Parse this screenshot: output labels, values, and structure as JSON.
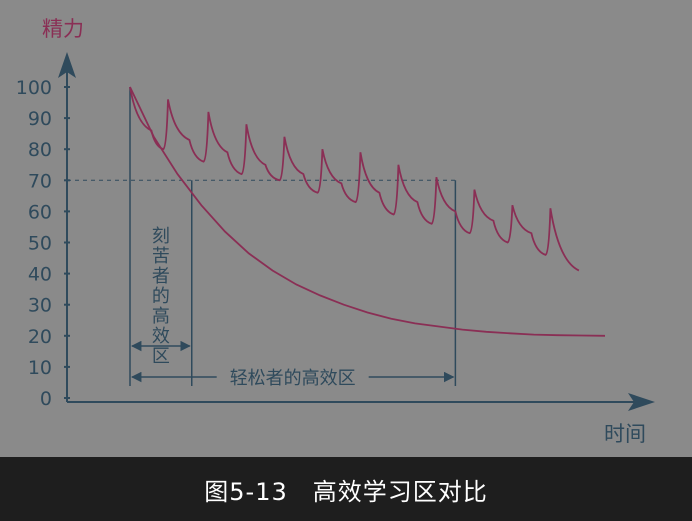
{
  "caption": "图5-13　高效学习区对比",
  "colors": {
    "background": "#8a8a8a",
    "axis": "#2f4a5c",
    "curve": "#8a2f55",
    "guide": "#2f4a5c",
    "caption_bg": "#1e1e1e",
    "caption_text": "#ffffff"
  },
  "chart_data": {
    "type": "line",
    "title": "",
    "ylabel": "精力",
    "xlabel": "时间",
    "ylim": [
      0,
      100
    ],
    "xlim": [
      0,
      10
    ],
    "yticks": [
      100,
      90,
      80,
      70,
      60,
      50,
      40,
      30,
      20,
      10,
      0
    ],
    "threshold": 70,
    "series": [
      {
        "name": "",
        "role": "continuous-decay",
        "x": [
          0,
          0.5,
          1,
          1.5,
          2,
          2.5,
          3,
          3.5,
          4,
          4.5,
          5,
          5.5,
          6,
          6.5,
          7,
          7.5,
          8,
          8.5,
          9,
          9.5,
          10
        ],
        "y": [
          100,
          84,
          72,
          62,
          53.5,
          46.5,
          41,
          36.5,
          33,
          30,
          27.5,
          25.5,
          24,
          23,
          22,
          21.3,
          20.8,
          20.4,
          20.2,
          20.1,
          20
        ]
      },
      {
        "name": "",
        "role": "with-breaks",
        "x": [
          0,
          0.45,
          0.7,
          0.8,
          1.25,
          1.55,
          1.65,
          2.05,
          2.35,
          2.45,
          2.85,
          3.15,
          3.25,
          3.65,
          3.95,
          4.05,
          4.45,
          4.75,
          4.85,
          5.25,
          5.55,
          5.65,
          6.05,
          6.35,
          6.45,
          6.85,
          7.15,
          7.25,
          7.65,
          7.95,
          8.05,
          8.45,
          8.75,
          8.85,
          9.45
        ],
        "y": [
          100,
          86,
          80,
          96,
          83,
          76,
          92,
          79,
          72,
          88,
          75,
          70,
          84,
          72,
          66,
          80,
          69,
          63,
          79,
          66,
          59,
          75,
          63,
          56,
          71,
          60,
          53,
          67,
          57,
          50,
          62,
          53,
          46,
          61,
          41
        ]
      }
    ],
    "markers": {
      "x_start": 0,
      "x_hard_end": 1.3,
      "x_relaxed_end": 6.85
    },
    "annotations": {
      "hard_zone": "刻苦者的高效区",
      "relaxed_zone": "轻松者的高效区"
    }
  }
}
